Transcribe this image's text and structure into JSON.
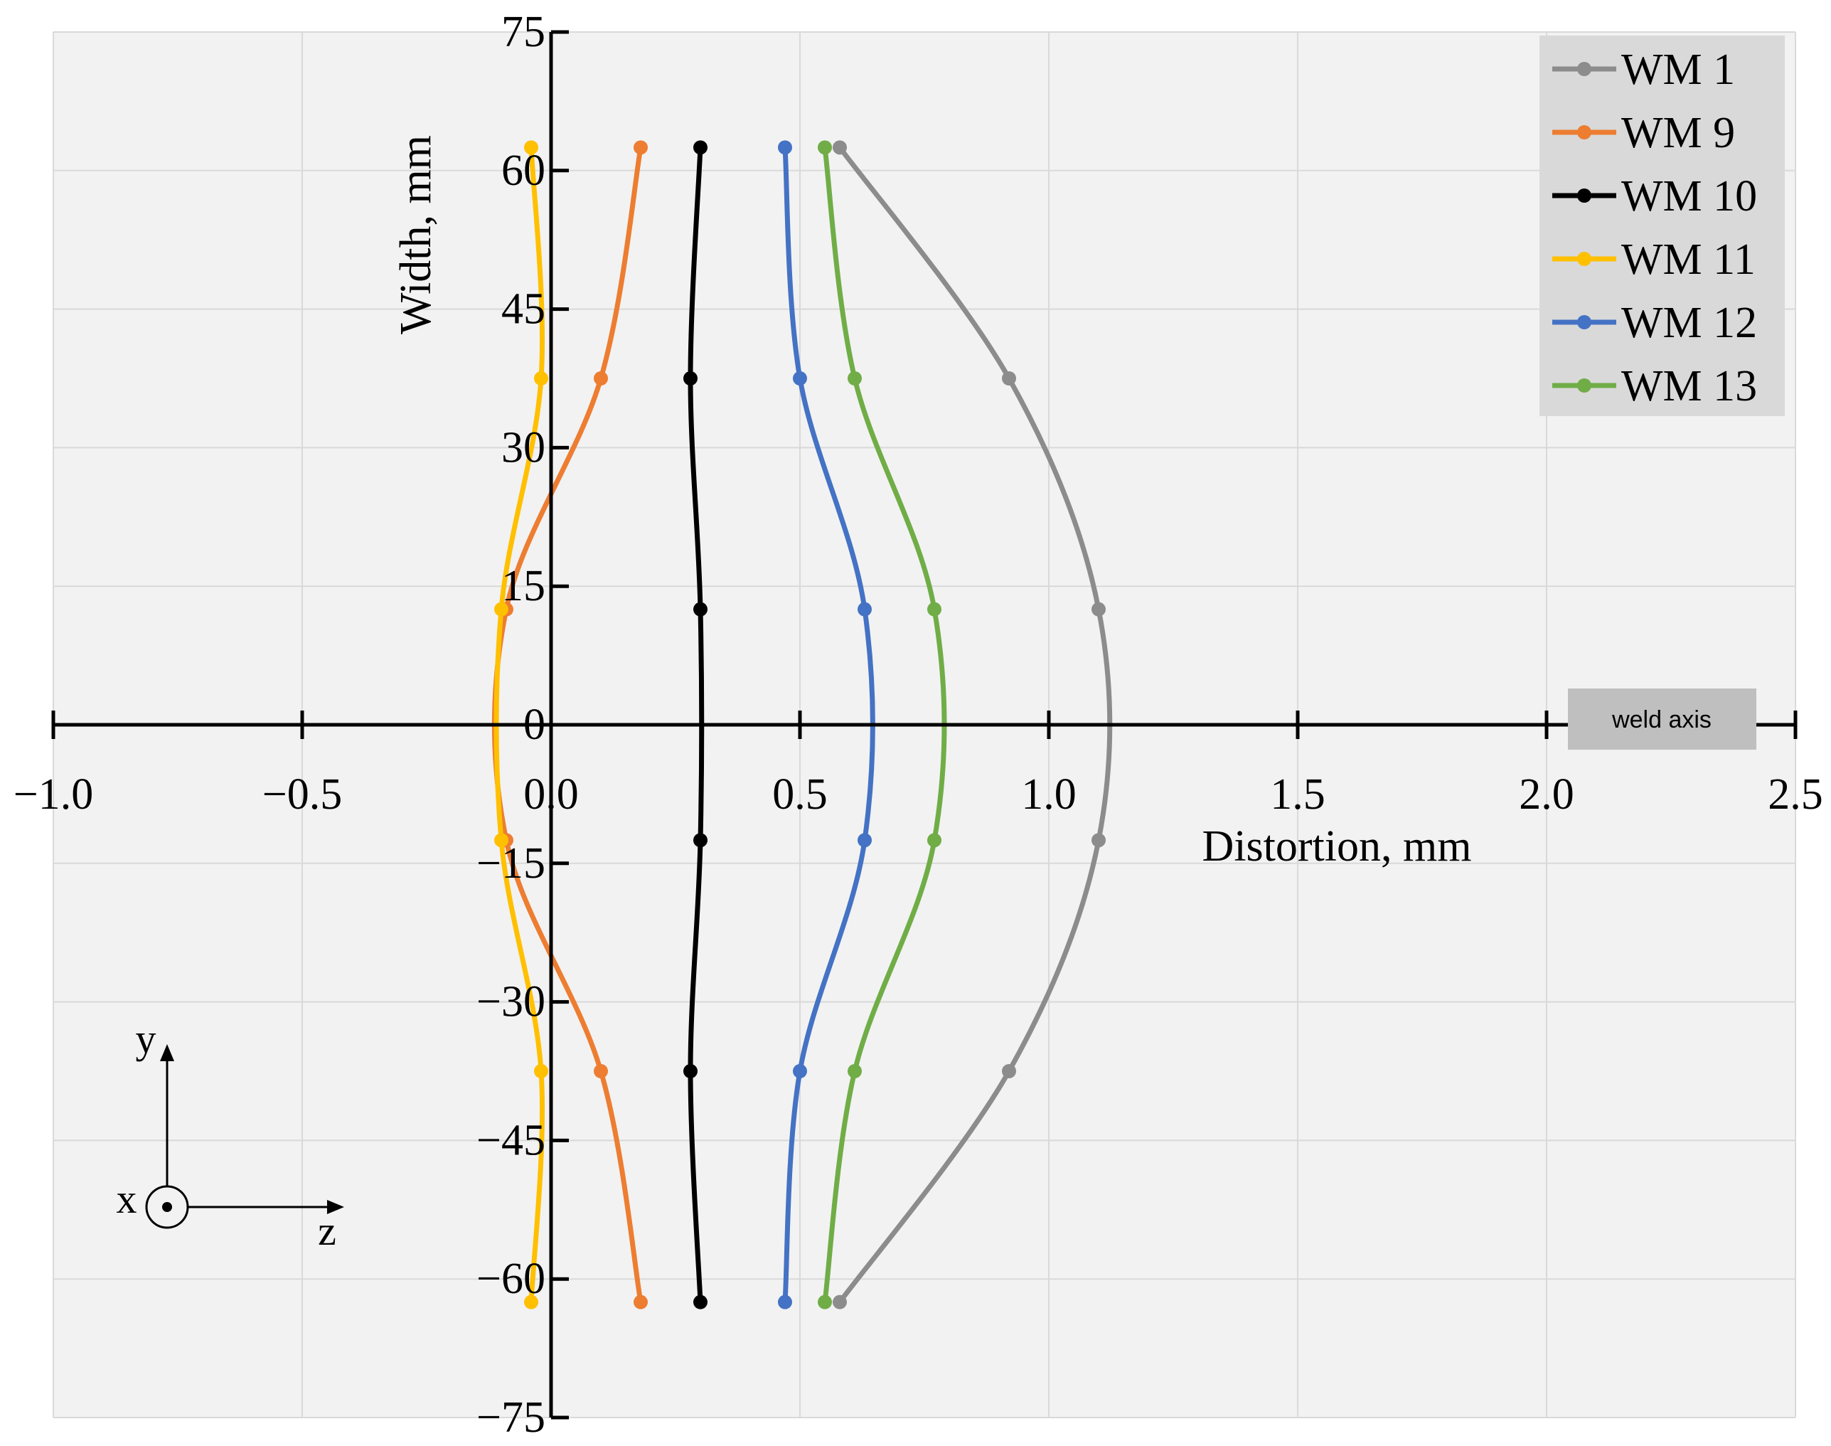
{
  "chart_data": {
    "type": "line",
    "title": "",
    "xlabel": "Distortion, mm",
    "ylabel": "Width, mm",
    "xlim": [
      -1.0,
      2.5
    ],
    "ylim": [
      -75,
      75
    ],
    "xticks": [
      -1.0,
      -0.5,
      0.0,
      0.5,
      1.0,
      1.5,
      2.0,
      2.5
    ],
    "xtick_labels": [
      "−1.0",
      "−0.5",
      "0.0",
      "0.5",
      "1.0",
      "1.5",
      "2.0",
      "2.5"
    ],
    "yticks": [
      75,
      60,
      45,
      30,
      15,
      0,
      -15,
      -30,
      -45,
      -60,
      -75
    ],
    "ytick_labels": [
      "75",
      "60",
      "45",
      "30",
      "15",
      "0",
      "−15",
      "−30",
      "−45",
      "−60",
      "−75"
    ],
    "grid": true,
    "legend_position": "top-right",
    "annotation": "weld axis",
    "coordinate_system": {
      "y": "y",
      "x": "x",
      "z": "z"
    },
    "y_points": [
      62.5,
      37.5,
      12.5,
      -12.5,
      -37.5,
      -62.5
    ],
    "series": [
      {
        "name": "WM 1",
        "color": "#8c8c8c",
        "x": [
          0.58,
          0.92,
          1.1,
          1.1,
          0.92,
          0.58
        ]
      },
      {
        "name": "WM 9",
        "color": "#ed7d31",
        "x": [
          0.18,
          0.1,
          -0.09,
          -0.09,
          0.1,
          0.18
        ]
      },
      {
        "name": "WM 10",
        "color": "#000000",
        "x": [
          0.3,
          0.28,
          0.3,
          0.3,
          0.28,
          0.3
        ]
      },
      {
        "name": "WM 11",
        "color": "#ffc000",
        "x": [
          -0.04,
          -0.02,
          -0.1,
          -0.1,
          -0.02,
          -0.04
        ]
      },
      {
        "name": "WM 12",
        "color": "#4472c4",
        "x": [
          0.47,
          0.5,
          0.63,
          0.63,
          0.5,
          0.47
        ]
      },
      {
        "name": "WM 13",
        "color": "#70ad47",
        "x": [
          0.55,
          0.61,
          0.77,
          0.77,
          0.61,
          0.55
        ]
      }
    ]
  }
}
